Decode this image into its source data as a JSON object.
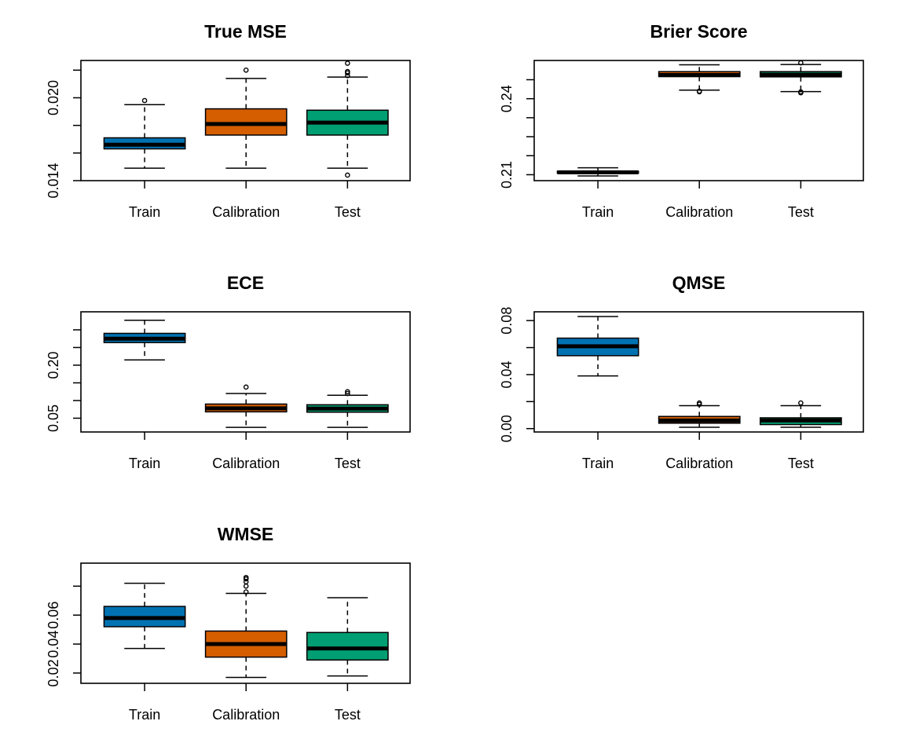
{
  "colors": {
    "Train": "#0072B2",
    "Calibration": "#D55E00",
    "Test": "#009E73",
    "frame": "#000000"
  },
  "chart_data": [
    {
      "type": "boxplot",
      "title": "True MSE",
      "categories": [
        "Train",
        "Calibration",
        "Test"
      ],
      "ylim": [
        0.014,
        0.0227
      ],
      "yticks": [
        0.014,
        0.016,
        0.018,
        0.02,
        0.022
      ],
      "ytick_labels": [
        "0.014",
        "",
        "",
        "0.020",
        ""
      ],
      "boxes": [
        {
          "whisker_low": 0.0149,
          "q1": 0.0163,
          "median": 0.0166,
          "q3": 0.0171,
          "whisker_high": 0.0195,
          "outliers": [
            0.0198
          ]
        },
        {
          "whisker_low": 0.0149,
          "q1": 0.0173,
          "median": 0.0181,
          "q3": 0.0192,
          "whisker_high": 0.0214,
          "outliers": [
            0.022
          ]
        },
        {
          "whisker_low": 0.0149,
          "q1": 0.0173,
          "median": 0.0182,
          "q3": 0.0191,
          "whisker_high": 0.0215,
          "outliers": [
            0.0144,
            0.0216,
            0.0218,
            0.0219,
            0.0225
          ]
        }
      ]
    },
    {
      "type": "boxplot",
      "title": "Brier Score",
      "categories": [
        "Train",
        "Calibration",
        "Test"
      ],
      "ylim": [
        0.2075,
        0.2581
      ],
      "yticks": [
        0.21,
        0.218,
        0.226,
        0.234,
        0.242,
        0.25
      ],
      "ytick_labels": [
        "0.21",
        "",
        "",
        "",
        "0.24",
        ""
      ],
      "boxes": [
        {
          "whisker_low": 0.2095,
          "q1": 0.2107,
          "median": 0.211,
          "q3": 0.2114,
          "whisker_high": 0.2129,
          "outliers": []
        },
        {
          "whisker_low": 0.2456,
          "q1": 0.2513,
          "median": 0.252,
          "q3": 0.2534,
          "whisker_high": 0.2563,
          "outliers": [
            0.2449,
            0.2452
          ]
        },
        {
          "whisker_low": 0.245,
          "q1": 0.2512,
          "median": 0.2521,
          "q3": 0.2534,
          "whisker_high": 0.2564,
          "outliers": [
            0.2445,
            0.2449,
            0.2571
          ]
        }
      ]
    },
    {
      "type": "boxplot",
      "title": "ECE",
      "categories": [
        "Train",
        "Calibration",
        "Test"
      ],
      "ylim": [
        0.011,
        0.351
      ],
      "yticks": [
        0.05,
        0.1,
        0.15,
        0.2,
        0.25,
        0.3
      ],
      "ytick_labels": [
        "0.05",
        "",
        "",
        "0.20",
        "",
        ""
      ],
      "boxes": [
        {
          "whisker_low": 0.215,
          "q1": 0.264,
          "median": 0.275,
          "q3": 0.29,
          "whisker_high": 0.327,
          "outliers": []
        },
        {
          "whisker_low": 0.024,
          "q1": 0.068,
          "median": 0.078,
          "q3": 0.09,
          "whisker_high": 0.12,
          "outliers": [
            0.138
          ]
        },
        {
          "whisker_low": 0.024,
          "q1": 0.067,
          "median": 0.077,
          "q3": 0.088,
          "whisker_high": 0.115,
          "outliers": [
            0.12,
            0.125
          ]
        }
      ]
    },
    {
      "type": "boxplot",
      "title": "QMSE",
      "categories": [
        "Train",
        "Calibration",
        "Test"
      ],
      "ylim": [
        -0.0025,
        0.0865
      ],
      "yticks": [
        0.0,
        0.02,
        0.04,
        0.06,
        0.08
      ],
      "ytick_labels": [
        "0.00",
        "",
        "0.04",
        "",
        "0.08"
      ],
      "boxes": [
        {
          "whisker_low": 0.039,
          "q1": 0.054,
          "median": 0.061,
          "q3": 0.067,
          "whisker_high": 0.083,
          "outliers": []
        },
        {
          "whisker_low": 0.001,
          "q1": 0.004,
          "median": 0.006,
          "q3": 0.009,
          "whisker_high": 0.017,
          "outliers": [
            0.018,
            0.019
          ]
        },
        {
          "whisker_low": 0.001,
          "q1": 0.003,
          "median": 0.006,
          "q3": 0.008,
          "whisker_high": 0.017,
          "outliers": [
            0.019
          ]
        }
      ]
    },
    {
      "type": "boxplot",
      "title": "WMSE",
      "categories": [
        "Train",
        "Calibration",
        "Test"
      ],
      "ylim": [
        0.0129,
        0.0959
      ],
      "yticks": [
        0.02,
        0.04,
        0.06,
        0.08
      ],
      "ytick_labels": [
        "0.02",
        "0.04",
        "0.06",
        ""
      ],
      "boxes": [
        {
          "whisker_low": 0.037,
          "q1": 0.052,
          "median": 0.058,
          "q3": 0.066,
          "whisker_high": 0.082,
          "outliers": []
        },
        {
          "whisker_low": 0.017,
          "q1": 0.031,
          "median": 0.04,
          "q3": 0.049,
          "whisker_high": 0.075,
          "outliers": [
            0.076,
            0.08,
            0.083,
            0.085,
            0.086
          ]
        },
        {
          "whisker_low": 0.018,
          "q1": 0.029,
          "median": 0.037,
          "q3": 0.048,
          "whisker_high": 0.072,
          "outliers": []
        }
      ]
    }
  ]
}
